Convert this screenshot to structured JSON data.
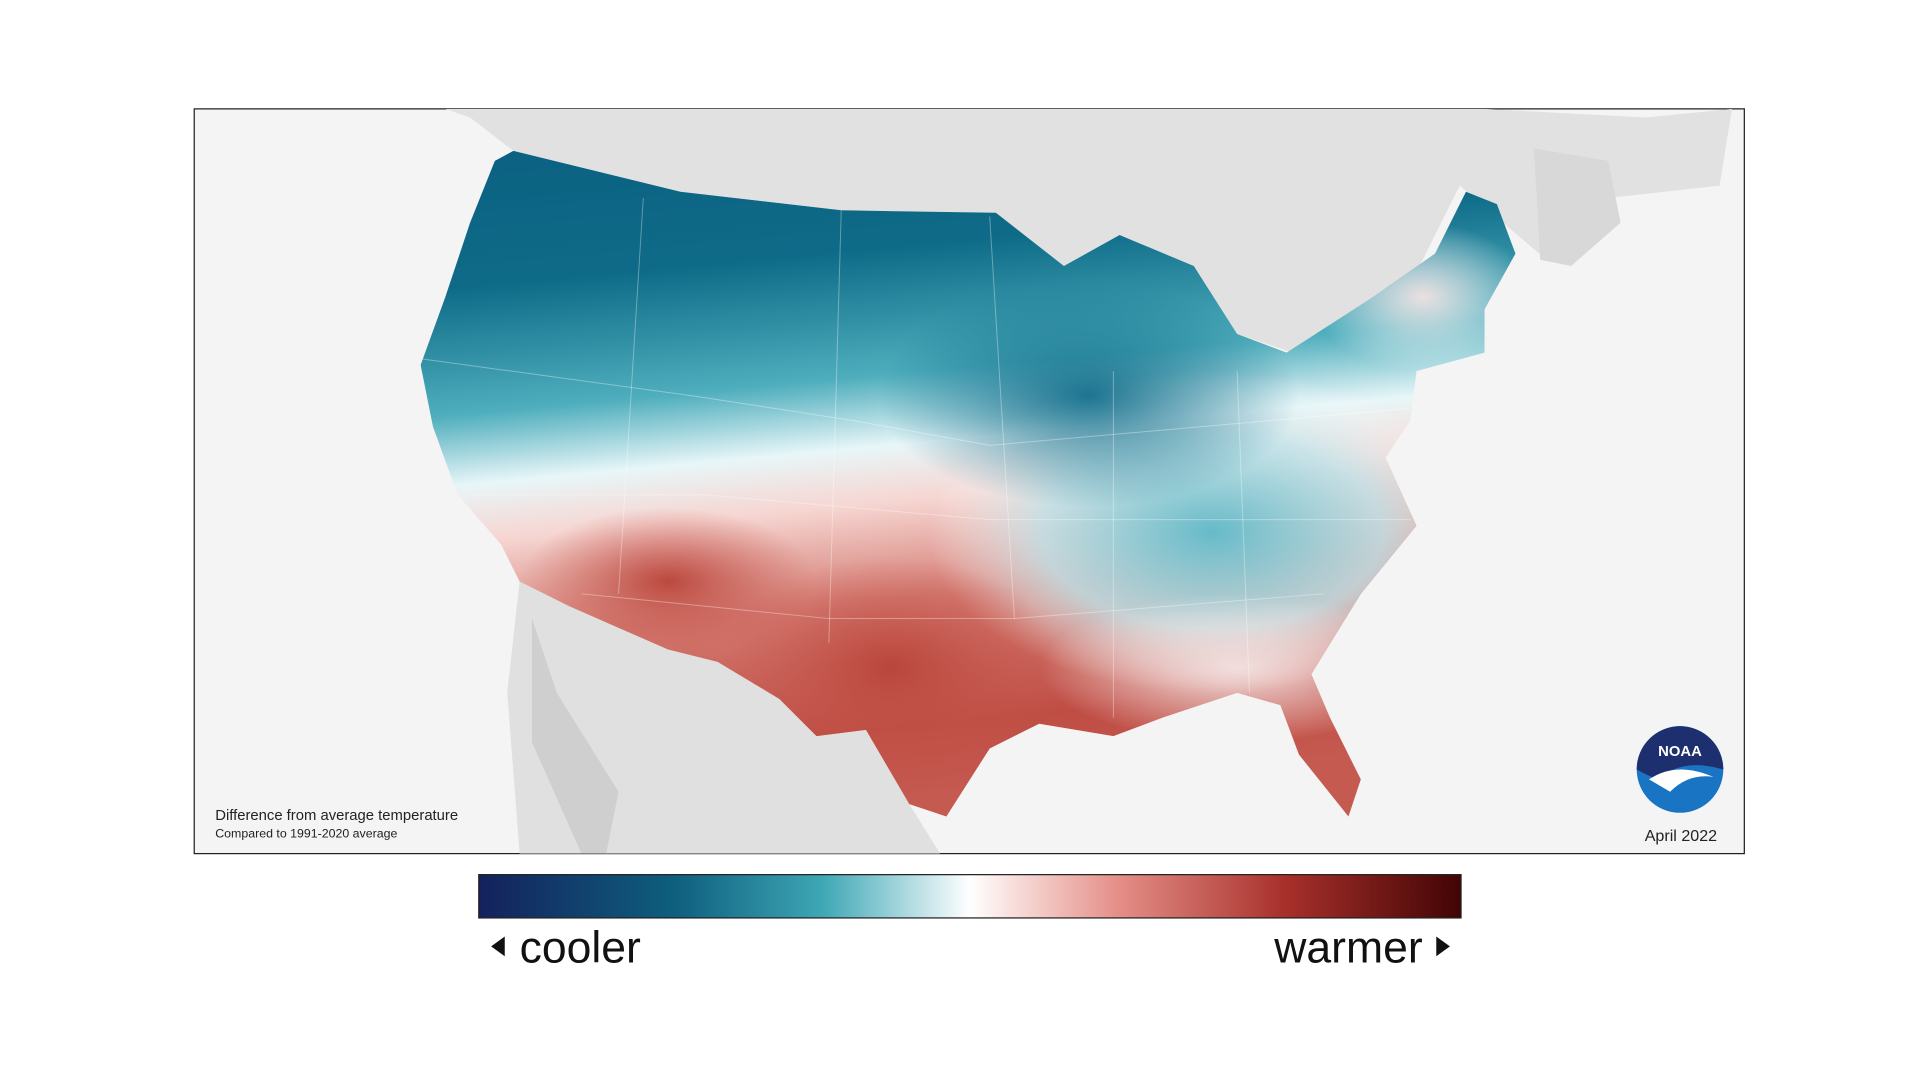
{
  "map": {
    "caption": {
      "title": "Difference from average temperature",
      "subtitle": "Compared to 1991-2020 average"
    },
    "date": "April 2022",
    "logo": "NOAA"
  },
  "legend": {
    "low": "cooler",
    "high": "warmer"
  }
}
